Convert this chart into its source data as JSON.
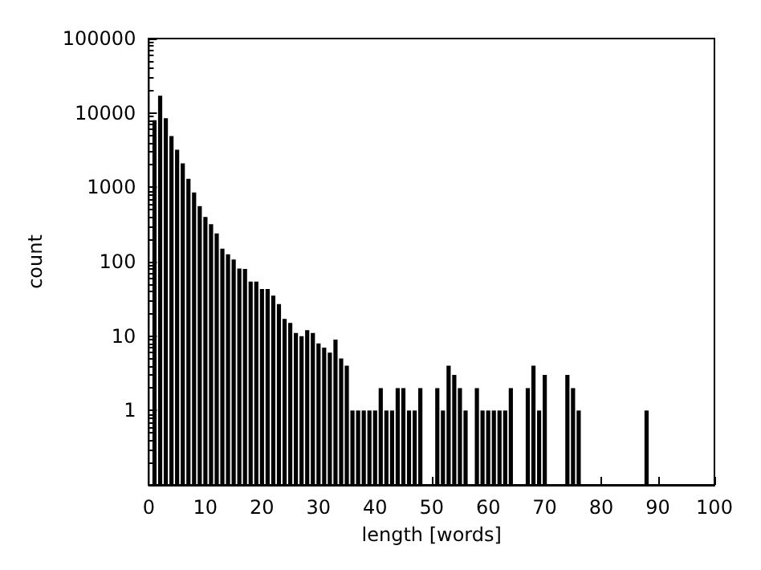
{
  "chart_data": {
    "type": "bar",
    "xlabel": "length [words]",
    "ylabel": "count",
    "x": [
      1,
      2,
      3,
      4,
      5,
      6,
      7,
      8,
      9,
      10,
      11,
      12,
      13,
      14,
      15,
      16,
      17,
      18,
      19,
      20,
      21,
      22,
      23,
      24,
      25,
      26,
      27,
      28,
      29,
      30,
      31,
      32,
      33,
      34,
      35,
      36,
      37,
      38,
      39,
      40,
      41,
      42,
      43,
      44,
      45,
      46,
      47,
      48,
      51,
      52,
      53,
      54,
      55,
      56,
      58,
      59,
      60,
      61,
      62,
      63,
      64,
      67,
      68,
      69,
      70,
      74,
      75,
      76,
      88
    ],
    "series": [
      {
        "color": "#000000",
        "values": [
          8000,
          17000,
          8500,
          4900,
          3200,
          2100,
          1300,
          850,
          560,
          400,
          320,
          240,
          150,
          126,
          107,
          81,
          80,
          54,
          54,
          43,
          43,
          35,
          27,
          17,
          15,
          11,
          10,
          12,
          11,
          8,
          7,
          6,
          9,
          5,
          4,
          1,
          1,
          1,
          1,
          1,
          2,
          1,
          1,
          2,
          2,
          1,
          1,
          2,
          2,
          1,
          4,
          3,
          2,
          1,
          2,
          1,
          1,
          1,
          1,
          1,
          2,
          2,
          4,
          1,
          3,
          3,
          2,
          1,
          1
        ]
      }
    ],
    "xlim": [
      0,
      100
    ],
    "xticks": [
      0,
      10,
      20,
      30,
      40,
      50,
      60,
      70,
      80,
      90,
      100
    ],
    "log": true,
    "ylim": [
      0.1,
      100000
    ],
    "yticks": [
      {
        "value": 0.1,
        "label": null
      },
      1,
      10,
      100,
      1000,
      10000,
      100000
    ]
  }
}
